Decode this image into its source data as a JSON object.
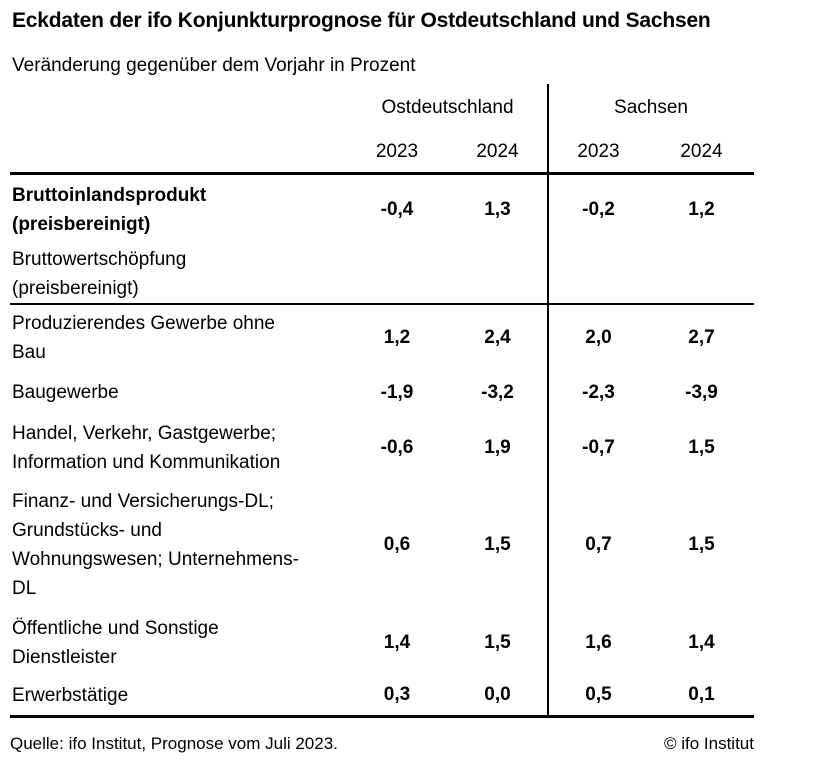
{
  "title": "Eckdaten der ifo Konjunkturprognose für Ostdeutschland und Sachsen",
  "subtitle": "Veränderung gegenüber dem Vorjahr in Prozent",
  "table": {
    "column_groups": [
      "Ostdeutschland",
      "Sachsen"
    ],
    "year_headers": [
      "2023",
      "2024",
      "2023",
      "2024"
    ],
    "rows": [
      {
        "bold": true,
        "label_lines": [
          "Bruttoinlandsprodukt",
          "(preisbereinigt)"
        ],
        "values": [
          "-0,4",
          "1,3",
          "-0,2",
          "1,2"
        ]
      },
      {
        "bold": false,
        "label_lines": [
          "Bruttowertschöpfung",
          "(preisbereinigt)"
        ],
        "values": [
          "",
          "",
          "",
          ""
        ]
      },
      {
        "bold": false,
        "label_lines": [
          "Produzierendes Gewerbe ohne",
          "Bau"
        ],
        "values": [
          "1,2",
          "2,4",
          "2,0",
          "2,7"
        ]
      },
      {
        "bold": false,
        "label_lines": [
          "Baugewerbe"
        ],
        "values": [
          "-1,9",
          "-3,2",
          "-2,3",
          "-3,9"
        ]
      },
      {
        "bold": false,
        "label_lines": [
          "Handel, Verkehr, Gastgewerbe;",
          "Information und Kommunikation"
        ],
        "values": [
          "-0,6",
          "1,9",
          "-0,7",
          "1,5"
        ]
      },
      {
        "bold": false,
        "label_lines": [
          "Finanz- und Versicherungs-DL;",
          "Grundstücks- und",
          "Wohnungswesen; Unternehmens-",
          "DL"
        ],
        "values": [
          "0,6",
          "1,5",
          "0,7",
          "1,5"
        ]
      },
      {
        "bold": false,
        "label_lines": [
          "Öffentliche und Sonstige",
          "Dienstleister"
        ],
        "values": [
          "1,4",
          "1,5",
          "1,6",
          "1,4"
        ]
      },
      {
        "bold": false,
        "label_lines": [
          "Erwerbstätige"
        ],
        "values": [
          "0,3",
          "0,0",
          "0,5",
          "0,1"
        ]
      }
    ]
  },
  "footer": {
    "source": "Quelle: ifo Institut, Prognose vom Juli 2023.",
    "copyright": "© ifo Institut"
  },
  "colors": {
    "text": "#000000",
    "background": "#ffffff",
    "rule": "#000000"
  },
  "chart_data": {
    "type": "table",
    "title": "Eckdaten der ifo Konjunkturprognose für Ostdeutschland und Sachsen",
    "subtitle": "Veränderung gegenüber dem Vorjahr in Prozent",
    "unit": "percent change versus previous year",
    "columns": [
      "Ostdeutschland 2023",
      "Ostdeutschland 2024",
      "Sachsen 2023",
      "Sachsen 2024"
    ],
    "rows": [
      {
        "label": "Bruttoinlandsprodukt (preisbereinigt)",
        "values": [
          -0.4,
          1.3,
          -0.2,
          1.2
        ]
      },
      {
        "label": "Bruttowertschöpfung (preisbereinigt)",
        "values": [
          null,
          null,
          null,
          null
        ]
      },
      {
        "label": "Produzierendes Gewerbe ohne Bau",
        "values": [
          1.2,
          2.4,
          2.0,
          2.7
        ]
      },
      {
        "label": "Baugewerbe",
        "values": [
          -1.9,
          -3.2,
          -2.3,
          -3.9
        ]
      },
      {
        "label": "Handel, Verkehr, Gastgewerbe; Information und Kommunikation",
        "values": [
          -0.6,
          1.9,
          -0.7,
          1.5
        ]
      },
      {
        "label": "Finanz- und Versicherungs-DL; Grundstücks- und Wohnungswesen; Unternehmens-DL",
        "values": [
          0.6,
          1.5,
          0.7,
          1.5
        ]
      },
      {
        "label": "Öffentliche und Sonstige Dienstleister",
        "values": [
          1.4,
          1.5,
          1.6,
          1.4
        ]
      },
      {
        "label": "Erwerbstätige",
        "values": [
          0.3,
          0.0,
          0.5,
          0.1
        ]
      }
    ],
    "source": "Quelle: ifo Institut, Prognose vom Juli 2023."
  }
}
